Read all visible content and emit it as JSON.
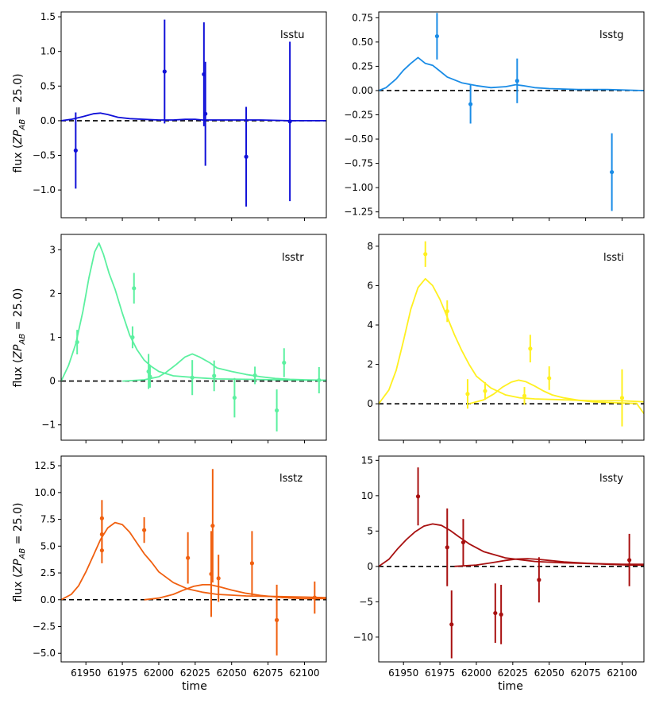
{
  "figure": {
    "xlabel": "time",
    "ylabel": "flux (ZP_AB = 25.0)",
    "ylabel_prefix": "flux (",
    "ylabel_zp": "ZP",
    "ylabel_sub": "AB",
    "ylabel_suffix": " = 25.0)"
  },
  "chart_data": [
    {
      "type": "scatter",
      "band": "lsstu",
      "color": "#1010d8",
      "xlim": [
        61933,
        62115
      ],
      "ylim": [
        -1.4,
        1.57
      ],
      "xticks": [
        61950,
        61975,
        62000,
        62025,
        62050,
        62075,
        62100
      ],
      "yticks": [
        -1.0,
        -0.5,
        0.0,
        0.5,
        1.0,
        1.5
      ],
      "ytick_labels": [
        "−1.0",
        "−0.5",
        "0.0",
        "0.5",
        "1.0",
        "1.5"
      ],
      "points": [
        {
          "x": 61943,
          "y": -0.43,
          "err": 0.55
        },
        {
          "x": 62004,
          "y": 0.71,
          "err": 0.75
        },
        {
          "x": 62031,
          "y": 0.67,
          "err": 0.75
        },
        {
          "x": 62032,
          "y": 0.1,
          "err": 0.75
        },
        {
          "x": 62060,
          "y": -0.52,
          "err": 0.72
        },
        {
          "x": 62090,
          "y": -0.01,
          "err": 1.15
        }
      ],
      "curves": [
        {
          "x": [
            61933,
            61940,
            61948,
            61955,
            61960,
            61965,
            61972,
            61980,
            61990,
            62000,
            62010,
            62018,
            62025,
            62030,
            62040,
            62050,
            62070,
            62090,
            62115
          ],
          "y": [
            0.0,
            0.02,
            0.06,
            0.1,
            0.11,
            0.09,
            0.05,
            0.03,
            0.02,
            0.01,
            0.01,
            0.02,
            0.02,
            0.01,
            0.01,
            0.01,
            0.01,
            0.0,
            0.0
          ]
        }
      ]
    },
    {
      "type": "scatter",
      "band": "lsstg",
      "color": "#1a8ce6",
      "xlim": [
        61933,
        62115
      ],
      "ylim": [
        -1.31,
        0.81
      ],
      "xticks": [
        61950,
        61975,
        62000,
        62025,
        62050,
        62075,
        62100
      ],
      "yticks": [
        -1.25,
        -1.0,
        -0.75,
        -0.5,
        -0.25,
        0.0,
        0.25,
        0.5,
        0.75
      ],
      "ytick_labels": [
        "−1.25",
        "−1.00",
        "−0.75",
        "−0.50",
        "−0.25",
        "0.00",
        "0.25",
        "0.50",
        "0.75"
      ],
      "points": [
        {
          "x": 61973,
          "y": 0.56,
          "err": 0.24
        },
        {
          "x": 61996,
          "y": -0.14,
          "err": 0.2
        },
        {
          "x": 62028,
          "y": 0.1,
          "err": 0.23
        },
        {
          "x": 62093,
          "y": -0.84,
          "err": 0.4
        }
      ],
      "curves": [
        {
          "x": [
            61933,
            61938,
            61945,
            61950,
            61955,
            61960,
            61965,
            61970,
            61975,
            61980,
            61990,
            62000,
            62010,
            62020,
            62027,
            62032,
            62040,
            62050,
            62070,
            62090,
            62115
          ],
          "y": [
            0.0,
            0.03,
            0.12,
            0.21,
            0.28,
            0.34,
            0.28,
            0.26,
            0.2,
            0.14,
            0.08,
            0.05,
            0.03,
            0.04,
            0.06,
            0.05,
            0.03,
            0.02,
            0.01,
            0.01,
            0.0
          ]
        }
      ]
    },
    {
      "type": "scatter",
      "band": "lsstr",
      "color": "#5cf0a0",
      "xlim": [
        61933,
        62115
      ],
      "ylim": [
        -1.35,
        3.35
      ],
      "xticks": [
        61950,
        61975,
        62000,
        62025,
        62050,
        62075,
        62100
      ],
      "yticks": [
        -1,
        0,
        1,
        2,
        3
      ],
      "ytick_labels": [
        "−1",
        "0",
        "1",
        "2",
        "3"
      ],
      "points": [
        {
          "x": 61944,
          "y": 0.89,
          "err": 0.28
        },
        {
          "x": 61982,
          "y": 1.0,
          "err": 0.25
        },
        {
          "x": 61983,
          "y": 2.12,
          "err": 0.35
        },
        {
          "x": 61993,
          "y": 0.22,
          "err": 0.4
        },
        {
          "x": 61994,
          "y": 0.1,
          "err": 0.25
        },
        {
          "x": 62023,
          "y": 0.08,
          "err": 0.4
        },
        {
          "x": 62038,
          "y": 0.12,
          "err": 0.35
        },
        {
          "x": 62052,
          "y": -0.38,
          "err": 0.45
        },
        {
          "x": 62066,
          "y": 0.13,
          "err": 0.2
        },
        {
          "x": 62081,
          "y": -0.67,
          "err": 0.48
        },
        {
          "x": 62086,
          "y": 0.42,
          "err": 0.33
        },
        {
          "x": 62110,
          "y": 0.02,
          "err": 0.3
        }
      ],
      "curves": [
        {
          "x": [
            61933,
            61938,
            61943,
            61948,
            61952,
            61956,
            61959,
            61962,
            61966,
            61970,
            61975,
            61980,
            61985,
            61990,
            61995,
            62000,
            62010,
            62025,
            62040,
            62060,
            62080,
            62100,
            62115
          ],
          "y": [
            0.0,
            0.35,
            0.85,
            1.6,
            2.35,
            2.95,
            3.15,
            2.9,
            2.45,
            2.1,
            1.55,
            1.05,
            0.72,
            0.48,
            0.33,
            0.22,
            0.12,
            0.08,
            0.05,
            0.04,
            0.03,
            0.02,
            0.02
          ]
        },
        {
          "x": [
            61975,
            61990,
            62000,
            62005,
            62012,
            62018,
            62023,
            62028,
            62035,
            62040,
            62050,
            62060,
            62070,
            62080,
            62090,
            62100,
            62115
          ],
          "y": [
            0.0,
            0.03,
            0.1,
            0.2,
            0.38,
            0.55,
            0.62,
            0.55,
            0.42,
            0.3,
            0.22,
            0.15,
            0.1,
            0.06,
            0.04,
            0.03,
            0.02
          ]
        }
      ]
    },
    {
      "type": "scatter",
      "band": "lssti",
      "color": "#fff020",
      "xlim": [
        61933,
        62115
      ],
      "ylim": [
        -1.85,
        8.6
      ],
      "xticks": [
        61950,
        61975,
        62000,
        62025,
        62050,
        62075,
        62100
      ],
      "yticks": [
        0,
        2,
        4,
        6,
        8
      ],
      "ytick_labels": [
        "0",
        "2",
        "4",
        "6",
        "8"
      ],
      "points": [
        {
          "x": 61965,
          "y": 7.6,
          "err": 0.65
        },
        {
          "x": 61980,
          "y": 4.7,
          "err": 0.55
        },
        {
          "x": 61994,
          "y": 0.5,
          "err": 0.75
        },
        {
          "x": 62006,
          "y": 0.65,
          "err": 0.45
        },
        {
          "x": 62033,
          "y": 0.4,
          "err": 0.45
        },
        {
          "x": 62037,
          "y": 2.8,
          "err": 0.7
        },
        {
          "x": 62050,
          "y": 1.3,
          "err": 0.6
        },
        {
          "x": 62100,
          "y": 0.3,
          "err": 1.45
        }
      ],
      "curves": [
        {
          "x": [
            61933,
            61940,
            61945,
            61950,
            61955,
            61960,
            61965,
            61970,
            61975,
            61980,
            61985,
            61990,
            61995,
            62000,
            62010,
            62020,
            62030,
            62040,
            62060,
            62080,
            62100,
            62115
          ],
          "y": [
            0.0,
            0.7,
            1.7,
            3.2,
            4.8,
            5.9,
            6.35,
            6.0,
            5.3,
            4.4,
            3.5,
            2.7,
            2.0,
            1.4,
            0.8,
            0.45,
            0.3,
            0.25,
            0.2,
            0.15,
            0.15,
            0.1
          ]
        },
        {
          "x": [
            61995,
            62005,
            62012,
            62018,
            62024,
            62029,
            62034,
            62040,
            62046,
            62052,
            62060,
            62070,
            62080,
            62095,
            62110,
            62115
          ],
          "y": [
            0.0,
            0.2,
            0.5,
            0.85,
            1.1,
            1.2,
            1.12,
            0.9,
            0.65,
            0.45,
            0.3,
            0.18,
            0.1,
            0.05,
            0.02,
            -0.5
          ]
        }
      ]
    },
    {
      "type": "scatter",
      "band": "lsstz",
      "color": "#f06010",
      "xlim": [
        61933,
        62115
      ],
      "ylim": [
        -5.8,
        13.4
      ],
      "xticks": [
        61950,
        61975,
        62000,
        62025,
        62050,
        62075,
        62100
      ],
      "yticks": [
        -5.0,
        -2.5,
        0.0,
        2.5,
        5.0,
        7.5,
        10.0,
        12.5
      ],
      "ytick_labels": [
        "−5.0",
        "−2.5",
        "0.0",
        "2.5",
        "5.0",
        "7.5",
        "10.0",
        "12.5"
      ],
      "points": [
        {
          "x": 61961,
          "y": 7.6,
          "err": 1.7
        },
        {
          "x": 61961,
          "y": 6.1,
          "err": 1.5
        },
        {
          "x": 61961,
          "y": 4.6,
          "err": 1.2
        },
        {
          "x": 61990,
          "y": 6.5,
          "err": 1.2
        },
        {
          "x": 62020,
          "y": 3.9,
          "err": 2.4
        },
        {
          "x": 62036,
          "y": 2.4,
          "err": 4.0
        },
        {
          "x": 62037,
          "y": 6.9,
          "err": 5.3
        },
        {
          "x": 62041,
          "y": 2.0,
          "err": 2.2
        },
        {
          "x": 62064,
          "y": 3.4,
          "err": 3.0
        },
        {
          "x": 62081,
          "y": -1.9,
          "err": 3.3
        },
        {
          "x": 62107,
          "y": 0.2,
          "err": 1.5
        }
      ],
      "curves": [
        {
          "x": [
            61933,
            61940,
            61945,
            61950,
            61955,
            61960,
            61965,
            61970,
            61975,
            61980,
            61985,
            61990,
            61995,
            62000,
            62010,
            62020,
            62030,
            62040,
            62060,
            62080,
            62100,
            62115
          ],
          "y": [
            0.0,
            0.5,
            1.3,
            2.6,
            4.1,
            5.6,
            6.7,
            7.2,
            7.0,
            6.3,
            5.3,
            4.3,
            3.5,
            2.6,
            1.6,
            1.0,
            0.7,
            0.5,
            0.35,
            0.3,
            0.25,
            0.2
          ]
        },
        {
          "x": [
            61990,
            62000,
            62010,
            62017,
            62024,
            62030,
            62035,
            62042,
            62050,
            62060,
            62070,
            62085,
            62100,
            62115
          ],
          "y": [
            0.0,
            0.15,
            0.5,
            0.9,
            1.25,
            1.4,
            1.4,
            1.2,
            0.9,
            0.6,
            0.4,
            0.2,
            0.1,
            0.1
          ]
        }
      ]
    },
    {
      "type": "scatter",
      "band": "lssty",
      "color": "#a81010",
      "xlim": [
        61933,
        62115
      ],
      "ylim": [
        -13.5,
        15.6
      ],
      "xticks": [
        61950,
        61975,
        62000,
        62025,
        62050,
        62075,
        62100
      ],
      "yticks": [
        -10,
        -5,
        0,
        5,
        10,
        15
      ],
      "ytick_labels": [
        "−10",
        "−5",
        "0",
        "5",
        "10",
        "15"
      ],
      "points": [
        {
          "x": 61960,
          "y": 9.9,
          "err": 4.1
        },
        {
          "x": 61980,
          "y": 2.7,
          "err": 5.5
        },
        {
          "x": 61983,
          "y": -8.2,
          "err": 4.8
        },
        {
          "x": 61991,
          "y": 3.4,
          "err": 3.3
        },
        {
          "x": 62013,
          "y": -6.6,
          "err": 4.2
        },
        {
          "x": 62017,
          "y": -6.8,
          "err": 4.2
        },
        {
          "x": 62043,
          "y": -1.9,
          "err": 3.2
        },
        {
          "x": 62105,
          "y": 0.9,
          "err": 3.7
        }
      ],
      "curves": [
        {
          "x": [
            61933,
            61940,
            61946,
            61952,
            61958,
            61964,
            61970,
            61976,
            61982,
            61988,
            61995,
            62005,
            62020,
            62040,
            62060,
            62080,
            62100,
            62115
          ],
          "y": [
            0.0,
            1.0,
            2.5,
            3.8,
            4.9,
            5.7,
            6.0,
            5.8,
            5.1,
            4.2,
            3.2,
            2.1,
            1.2,
            0.7,
            0.5,
            0.4,
            0.3,
            0.3
          ]
        },
        {
          "x": [
            61985,
            62000,
            62010,
            62020,
            62028,
            62035,
            62042,
            62050,
            62060,
            62075,
            62090,
            62105,
            62115
          ],
          "y": [
            0.0,
            0.2,
            0.5,
            0.85,
            1.05,
            1.1,
            1.0,
            0.85,
            0.65,
            0.45,
            0.3,
            0.2,
            0.2
          ]
        }
      ]
    }
  ]
}
